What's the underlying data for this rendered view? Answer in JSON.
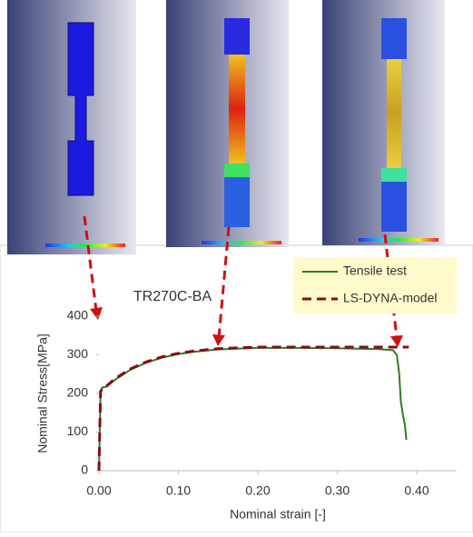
{
  "chart_data": {
    "type": "line",
    "title": "TR270C-BA",
    "x_label": "Nominal strain  [-]",
    "y_label": "Nominal Stress[MPa]",
    "xlim": [
      0,
      0.45
    ],
    "ylim": [
      0,
      400
    ],
    "xticks": [
      {
        "value": 0,
        "label": "0.00"
      },
      {
        "value": 0.1,
        "label": "0.10"
      },
      {
        "value": 0.2,
        "label": "0.20"
      },
      {
        "value": 0.3,
        "label": "0.30"
      },
      {
        "value": 0.4,
        "label": "0.40"
      }
    ],
    "yticks": [
      0,
      100,
      200,
      300,
      400
    ],
    "series": [
      {
        "name": "Tensile test",
        "color": "#2e7d1e",
        "dash": false,
        "x": [
          0,
          0.002,
          0.004,
          0.01,
          0.02,
          0.04,
          0.06,
          0.08,
          0.1,
          0.12,
          0.15,
          0.2,
          0.25,
          0.3,
          0.35,
          0.37,
          0.375,
          0.378,
          0.38,
          0.383,
          0.385,
          0.387
        ],
        "values": [
          0,
          200,
          215,
          218,
          235,
          262,
          280,
          293,
          302,
          308,
          314,
          318,
          318,
          317,
          315,
          312,
          300,
          250,
          180,
          140,
          120,
          80
        ]
      },
      {
        "name": "LS-DYNA-model",
        "color": "#8b0a1a",
        "dash": true,
        "x": [
          0,
          0.002,
          0.004,
          0.01,
          0.02,
          0.04,
          0.06,
          0.08,
          0.1,
          0.12,
          0.15,
          0.2,
          0.25,
          0.3,
          0.35,
          0.39
        ],
        "values": [
          0,
          205,
          212,
          220,
          238,
          264,
          282,
          295,
          304,
          310,
          316,
          320,
          320,
          320,
          320,
          320
        ]
      }
    ]
  }
}
